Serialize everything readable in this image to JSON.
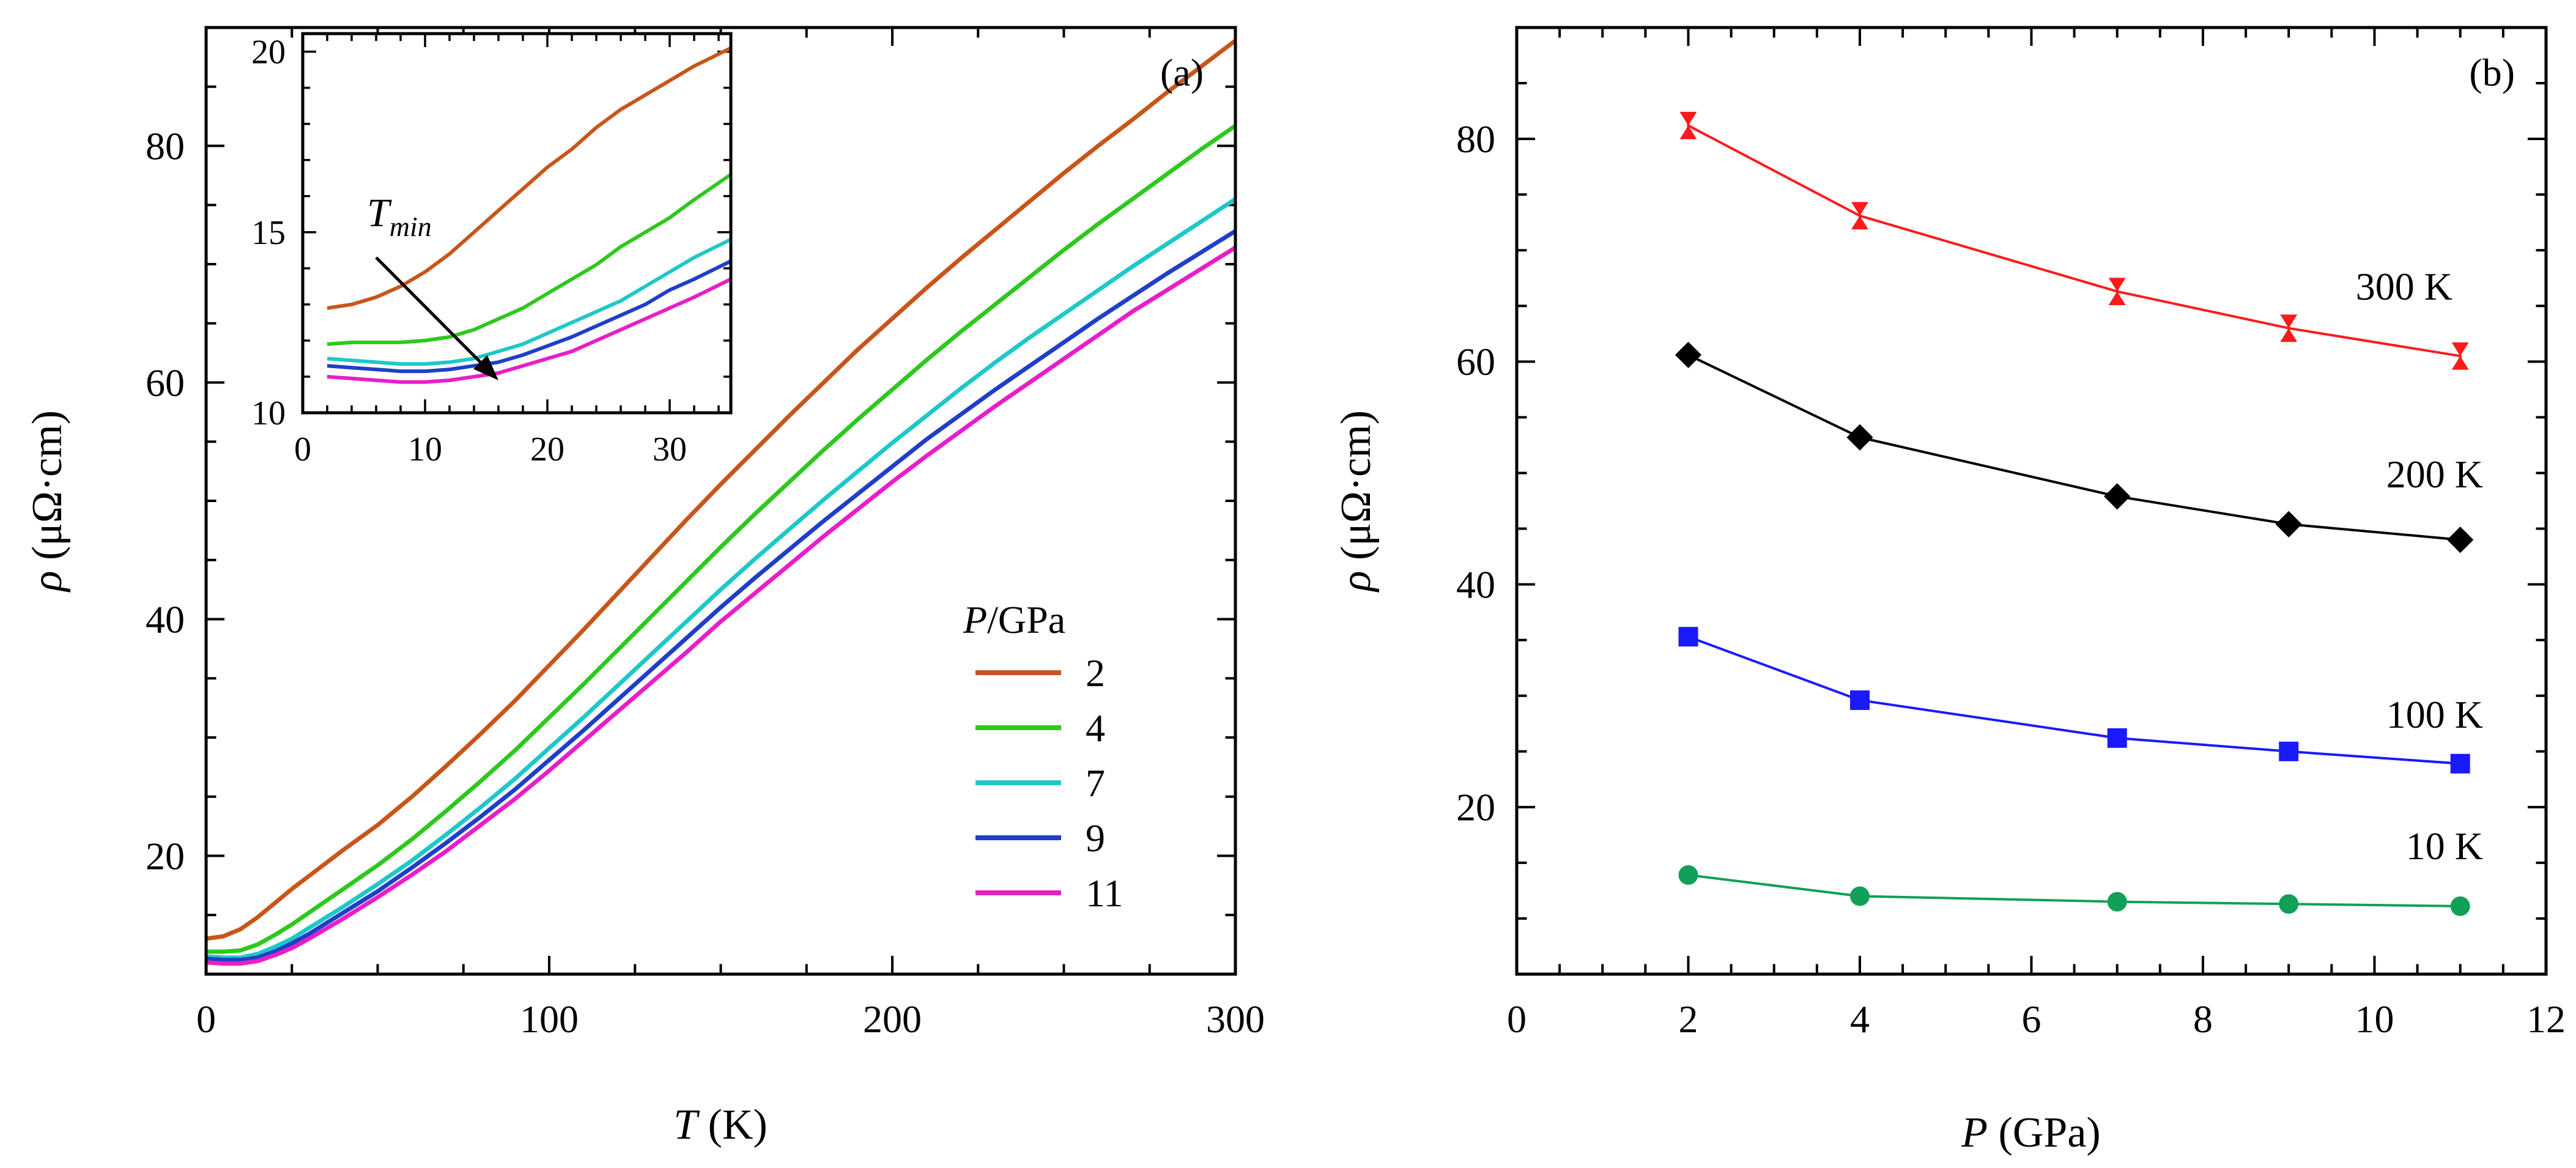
{
  "chart_data": [
    {
      "id": "a",
      "type": "line",
      "panel_label": "(a)",
      "xlabel_var": "T",
      "xlabel_unit": " (K)",
      "ylabel_var": "ρ",
      "ylabel_unit": " (μΩ·cm)",
      "xlim": [
        0,
        300
      ],
      "ylim": [
        10,
        90
      ],
      "xticks": [
        0,
        100,
        200,
        300
      ],
      "yticks": [
        20,
        40,
        60,
        80
      ],
      "legend_title_var": "P",
      "legend_title_unit": "/GPa",
      "series": [
        {
          "name": "2",
          "color": "#c8561a",
          "x": [
            0,
            5,
            10,
            15,
            20,
            25,
            30,
            40,
            50,
            60,
            70,
            80,
            90,
            100,
            110,
            120,
            130,
            140,
            150,
            160,
            170,
            180,
            190,
            200,
            210,
            220,
            230,
            240,
            250,
            260,
            270,
            280,
            290,
            300
          ],
          "y": [
            13.0,
            13.2,
            13.8,
            14.8,
            16.0,
            17.2,
            18.3,
            20.5,
            22.6,
            25.0,
            27.6,
            30.3,
            33.1,
            36.1,
            39.1,
            42.2,
            45.3,
            48.4,
            51.4,
            54.3,
            57.2,
            60.0,
            62.8,
            65.4,
            68.0,
            70.5,
            72.9,
            75.3,
            77.7,
            80.0,
            82.2,
            84.5,
            86.7,
            88.9
          ]
        },
        {
          "name": "4",
          "color": "#2ec81e",
          "x": [
            0,
            5,
            10,
            15,
            20,
            25,
            30,
            40,
            50,
            60,
            70,
            80,
            90,
            100,
            110,
            120,
            130,
            140,
            150,
            160,
            170,
            180,
            190,
            200,
            210,
            220,
            230,
            240,
            250,
            260,
            270,
            280,
            290,
            300
          ],
          "y": [
            11.9,
            11.9,
            12.0,
            12.5,
            13.3,
            14.2,
            15.2,
            17.2,
            19.2,
            21.4,
            23.8,
            26.3,
            28.9,
            31.7,
            34.5,
            37.4,
            40.3,
            43.2,
            46.1,
            48.9,
            51.6,
            54.3,
            56.9,
            59.4,
            61.9,
            64.3,
            66.6,
            68.9,
            71.2,
            73.4,
            75.5,
            77.6,
            79.7,
            81.7
          ]
        },
        {
          "name": "7",
          "color": "#1ec8c8",
          "x": [
            0,
            5,
            10,
            15,
            20,
            25,
            30,
            40,
            50,
            60,
            70,
            80,
            90,
            100,
            110,
            120,
            130,
            140,
            150,
            160,
            170,
            180,
            190,
            200,
            210,
            220,
            230,
            240,
            250,
            260,
            270,
            280,
            290,
            300
          ],
          "y": [
            11.5,
            11.4,
            11.4,
            11.7,
            12.3,
            13.0,
            13.9,
            15.7,
            17.6,
            19.6,
            21.8,
            24.1,
            26.5,
            29.1,
            31.7,
            34.4,
            37.1,
            39.8,
            42.5,
            45.1,
            47.6,
            50.1,
            52.5,
            54.9,
            57.2,
            59.5,
            61.7,
            63.8,
            65.8,
            67.8,
            69.8,
            71.7,
            73.6,
            75.5
          ]
        },
        {
          "name": "9",
          "color": "#1f3fc8",
          "x": [
            0,
            5,
            10,
            15,
            20,
            25,
            30,
            40,
            50,
            60,
            70,
            80,
            90,
            100,
            110,
            120,
            130,
            140,
            150,
            160,
            170,
            180,
            190,
            200,
            210,
            220,
            230,
            240,
            250,
            260,
            270,
            280,
            290,
            300
          ],
          "y": [
            11.3,
            11.2,
            11.2,
            11.4,
            11.9,
            12.6,
            13.4,
            15.2,
            17.0,
            19.0,
            21.1,
            23.3,
            25.6,
            28.1,
            30.6,
            33.2,
            35.8,
            38.4,
            41.0,
            43.5,
            45.9,
            48.3,
            50.6,
            52.9,
            55.2,
            57.3,
            59.4,
            61.4,
            63.4,
            65.4,
            67.3,
            69.2,
            71.0,
            72.8
          ]
        },
        {
          "name": "11",
          "color": "#e81ec8",
          "x": [
            0,
            5,
            10,
            15,
            20,
            25,
            30,
            40,
            50,
            60,
            70,
            80,
            90,
            100,
            110,
            120,
            130,
            140,
            150,
            160,
            170,
            180,
            190,
            200,
            210,
            220,
            230,
            240,
            250,
            260,
            270,
            280,
            290,
            300
          ],
          "y": [
            11.0,
            10.9,
            10.9,
            11.1,
            11.6,
            12.2,
            13.0,
            14.7,
            16.5,
            18.4,
            20.4,
            22.6,
            24.8,
            27.2,
            29.7,
            32.2,
            34.7,
            37.2,
            39.8,
            42.2,
            44.6,
            47.0,
            49.3,
            51.6,
            53.8,
            55.9,
            58.0,
            60.0,
            62.0,
            64.0,
            66.0,
            67.8,
            69.6,
            71.4
          ]
        }
      ],
      "inset": {
        "xlim": [
          0,
          35
        ],
        "ylim": [
          10,
          20.5
        ],
        "xticks": [
          0,
          10,
          20,
          30
        ],
        "yticks": [
          10,
          15,
          20
        ],
        "annotation_main": "T",
        "annotation_sub": "min",
        "arrow_from": [
          6,
          14.3
        ],
        "arrow_to": [
          16,
          10.9
        ],
        "series": [
          {
            "name": "2",
            "color": "#c8561a",
            "x": [
              2,
              4,
              6,
              8,
              10,
              12,
              14,
              16,
              18,
              20,
              22,
              24,
              26,
              28,
              30,
              32,
              35
            ],
            "y": [
              12.9,
              13.0,
              13.2,
              13.5,
              13.9,
              14.4,
              15.0,
              15.6,
              16.2,
              16.8,
              17.3,
              17.9,
              18.4,
              18.8,
              19.2,
              19.6,
              20.1
            ]
          },
          {
            "name": "4",
            "color": "#2ec81e",
            "x": [
              2,
              4,
              6,
              8,
              10,
              12,
              14,
              16,
              18,
              20,
              22,
              24,
              26,
              28,
              30,
              32,
              35
            ],
            "y": [
              11.9,
              11.95,
              11.95,
              11.95,
              12.0,
              12.1,
              12.3,
              12.6,
              12.9,
              13.3,
              13.7,
              14.1,
              14.6,
              15.0,
              15.4,
              15.9,
              16.6
            ]
          },
          {
            "name": "7",
            "color": "#1ec8c8",
            "x": [
              2,
              4,
              6,
              8,
              10,
              12,
              14,
              16,
              18,
              20,
              22,
              24,
              26,
              28,
              30,
              32,
              35
            ],
            "y": [
              11.5,
              11.45,
              11.4,
              11.35,
              11.35,
              11.4,
              11.5,
              11.7,
              11.9,
              12.2,
              12.5,
              12.8,
              13.1,
              13.5,
              13.9,
              14.3,
              14.8
            ]
          },
          {
            "name": "9",
            "color": "#1f3fc8",
            "x": [
              2,
              4,
              6,
              8,
              10,
              12,
              14,
              16,
              18,
              20,
              22,
              24,
              26,
              28,
              30,
              32,
              35
            ],
            "y": [
              11.3,
              11.25,
              11.2,
              11.15,
              11.15,
              11.2,
              11.3,
              11.4,
              11.6,
              11.85,
              12.1,
              12.4,
              12.7,
              13.0,
              13.4,
              13.7,
              14.2
            ]
          },
          {
            "name": "11",
            "color": "#e81ec8",
            "x": [
              2,
              4,
              6,
              8,
              10,
              12,
              14,
              16,
              18,
              20,
              22,
              24,
              26,
              28,
              30,
              32,
              35
            ],
            "y": [
              11.0,
              10.95,
              10.9,
              10.85,
              10.85,
              10.9,
              11.0,
              11.1,
              11.3,
              11.5,
              11.7,
              12.0,
              12.3,
              12.6,
              12.9,
              13.2,
              13.7
            ]
          }
        ]
      }
    },
    {
      "id": "b",
      "type": "line",
      "panel_label": "(b)",
      "xlabel_var": "P",
      "xlabel_unit": " (GPa)",
      "ylabel_var": "ρ",
      "ylabel_unit": " (μΩ·cm)",
      "xlim": [
        0,
        12
      ],
      "ylim": [
        5,
        90
      ],
      "xticks": [
        0,
        2,
        4,
        6,
        8,
        10,
        12
      ],
      "yticks": [
        20,
        40,
        60,
        80
      ],
      "series": [
        {
          "name": "300 K",
          "color": "#ff1a1a",
          "marker": "bowtie",
          "x": [
            2,
            4,
            7,
            9,
            11
          ],
          "y": [
            81.2,
            73.1,
            66.3,
            63.0,
            60.5
          ],
          "err": [
            0.9,
            0.9,
            0.9,
            0.9,
            0.9
          ]
        },
        {
          "name": "200 K",
          "color": "#000000",
          "marker": "diamond",
          "x": [
            2,
            4,
            7,
            9,
            11
          ],
          "y": [
            60.6,
            53.2,
            47.9,
            45.4,
            44.0
          ],
          "err": [
            0,
            0,
            0,
            0,
            0
          ]
        },
        {
          "name": "100 K",
          "color": "#1a1aff",
          "marker": "square",
          "x": [
            2,
            4,
            7,
            9,
            11
          ],
          "y": [
            35.3,
            29.6,
            26.2,
            25.0,
            23.9
          ],
          "err": [
            0,
            0,
            0,
            0,
            0
          ]
        },
        {
          "name": "10 K",
          "color": "#12a058",
          "marker": "circle",
          "x": [
            2,
            4,
            7,
            9,
            11
          ],
          "y": [
            13.9,
            12.0,
            11.5,
            11.3,
            11.1
          ],
          "err": [
            0,
            0,
            0,
            0,
            0
          ]
        }
      ]
    }
  ]
}
